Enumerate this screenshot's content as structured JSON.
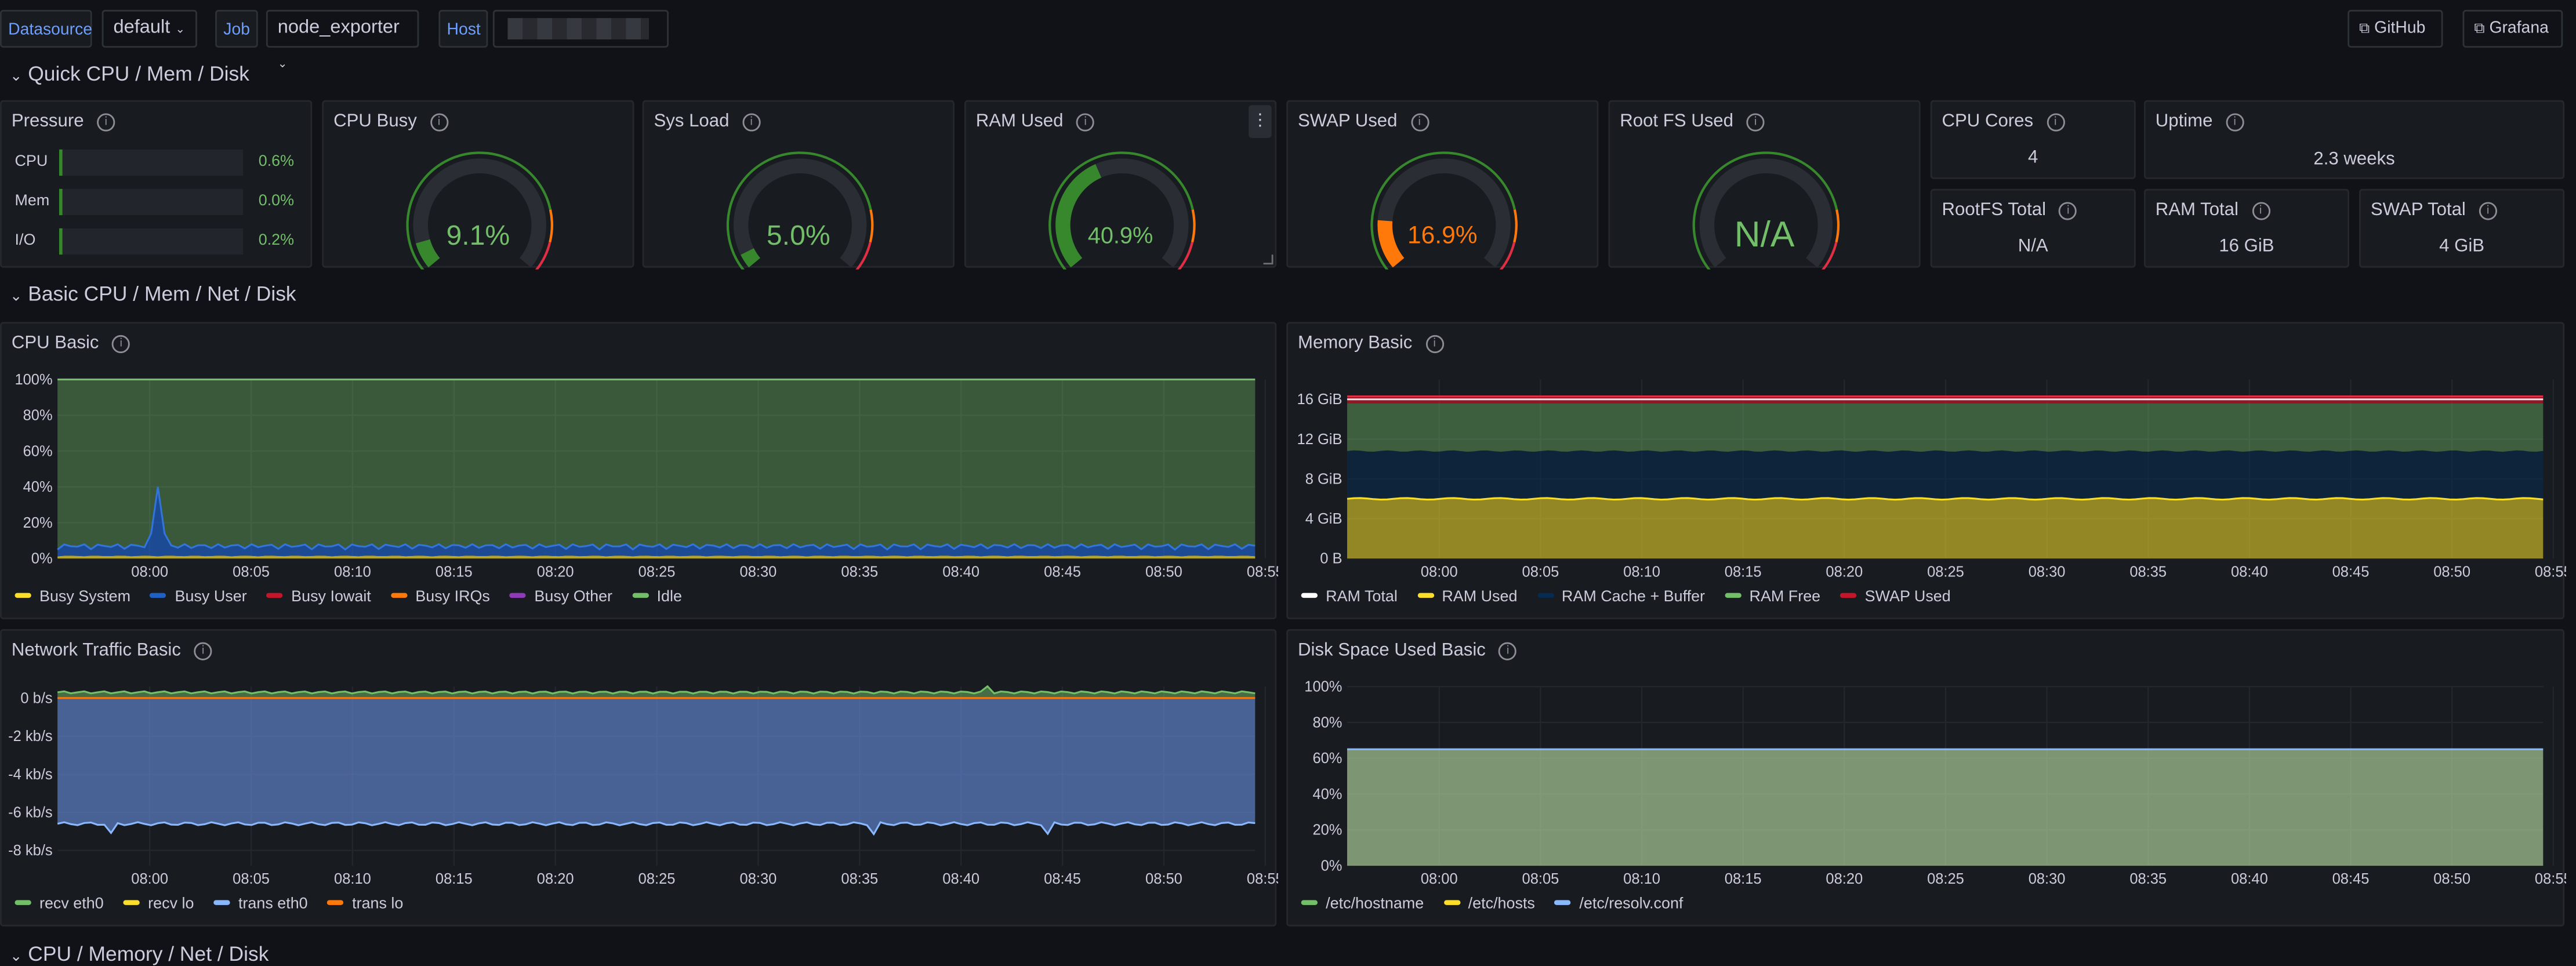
{
  "topbar": {
    "datasource_label": "Datasource",
    "datasource_value": "default",
    "job_label": "Job",
    "job_value": "node_exporter",
    "host_label": "Host",
    "github_label": "GitHub",
    "grafana_label": "Grafana"
  },
  "rows": {
    "quick": "Quick CPU / Mem / Disk",
    "basic": "Basic CPU / Mem / Net / Disk",
    "next": "CPU / Memory / Net / Disk"
  },
  "pressure": {
    "title": "Pressure",
    "items": [
      {
        "label": "CPU",
        "value": "0.6%",
        "fraction": 0.006
      },
      {
        "label": "Mem",
        "value": "0.0%",
        "fraction": 0.0
      },
      {
        "label": "I/O",
        "value": "0.2%",
        "fraction": 0.002
      }
    ]
  },
  "gauges": [
    {
      "title": "CPU Busy",
      "value": "9.1%",
      "fraction": 0.091,
      "color": "#37872d",
      "textColor": "#73bf69"
    },
    {
      "title": "Sys Load",
      "value": "5.0%",
      "fraction": 0.05,
      "color": "#37872d",
      "textColor": "#73bf69"
    },
    {
      "title": "RAM Used",
      "value": "40.9%",
      "fraction": 0.409,
      "color": "#37872d",
      "textColor": "#73bf69"
    },
    {
      "title": "SWAP Used",
      "value": "16.9%",
      "fraction": 0.169,
      "color": "#ff780a",
      "textColor": "#ff780a"
    },
    {
      "title": "Root FS Used",
      "value": "N/A",
      "fraction": 0,
      "color": "#37872d",
      "textColor": "#73bf69"
    }
  ],
  "stats": {
    "cpu_cores": {
      "title": "CPU Cores",
      "value": "4"
    },
    "uptime": {
      "title": "Uptime",
      "value": "2.3 weeks"
    },
    "rootfs_total": {
      "title": "RootFS Total",
      "value": "N/A"
    },
    "ram_total": {
      "title": "RAM Total",
      "value": "16 GiB"
    },
    "swap_total": {
      "title": "SWAP Total",
      "value": "4 GiB"
    }
  },
  "time_ticks": [
    "08:00",
    "08:05",
    "08:10",
    "08:15",
    "08:20",
    "08:25",
    "08:30",
    "08:35",
    "08:40",
    "08:45",
    "08:50",
    "08:55"
  ],
  "chart_data": [
    {
      "type": "area",
      "title": "CPU Basic",
      "y_ticks": [
        "100%",
        "80%",
        "60%",
        "40%",
        "20%",
        "0%"
      ],
      "ylim": [
        0,
        100
      ],
      "series": [
        {
          "name": "Busy System",
          "color": "#fade2a"
        },
        {
          "name": "Busy User",
          "color": "#1f60c4"
        },
        {
          "name": "Busy Iowait",
          "color": "#c4162a"
        },
        {
          "name": "Busy IRQs",
          "color": "#ff780a"
        },
        {
          "name": "Busy Other",
          "color": "#8f3bb8"
        },
        {
          "name": "Idle",
          "color": "#73bf69"
        }
      ],
      "busy_baseline": 5,
      "busy_spike_peak": 40,
      "busy_spike_time": "08:00"
    },
    {
      "type": "area",
      "title": "Memory Basic",
      "y_ticks": [
        "16 GiB",
        "12 GiB",
        "8 GiB",
        "4 GiB",
        "0 B"
      ],
      "ylim": [
        0,
        18
      ],
      "series": [
        {
          "name": "RAM Total",
          "color": "#ffffff",
          "value": 16
        },
        {
          "name": "RAM Used",
          "color": "#fade2a",
          "value": 6
        },
        {
          "name": "RAM Cache + Buffer",
          "color": "#052b51",
          "value": 10.8
        },
        {
          "name": "RAM Free",
          "color": "#73bf69",
          "value": 15.6
        },
        {
          "name": "SWAP Used",
          "color": "#c4162a",
          "value": 16.3
        }
      ]
    },
    {
      "type": "area",
      "title": "Network Traffic Basic",
      "y_ticks": [
        "0 b/s",
        "-2 kb/s",
        "-4 kb/s",
        "-6 kb/s",
        "-8 kb/s"
      ],
      "ylim": [
        -8.8,
        0.6
      ],
      "series": [
        {
          "name": "recv eth0",
          "color": "#73bf69",
          "value": 0.3
        },
        {
          "name": "recv lo",
          "color": "#fade2a",
          "value": 0
        },
        {
          "name": "trans eth0",
          "color": "#8ab8ff",
          "value": -6.6
        },
        {
          "name": "trans lo",
          "color": "#ff780a",
          "value": 0
        }
      ]
    },
    {
      "type": "area",
      "title": "Disk Space Used Basic",
      "y_ticks": [
        "100%",
        "80%",
        "60%",
        "40%",
        "20%",
        "0%"
      ],
      "ylim": [
        0,
        100
      ],
      "series": [
        {
          "name": "/etc/hostname",
          "color": "#73bf69",
          "value": 65
        },
        {
          "name": "/etc/hosts",
          "color": "#fade2a",
          "value": 65
        },
        {
          "name": "/etc/resolv.conf",
          "color": "#8ab8ff",
          "value": 65
        }
      ]
    }
  ]
}
